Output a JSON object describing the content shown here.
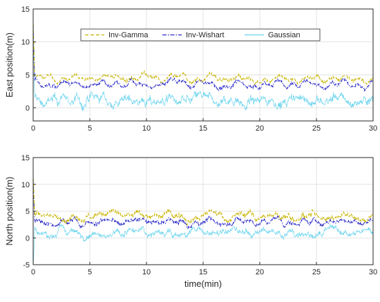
{
  "chart_data": [
    {
      "type": "line",
      "ylabel": "East position(m)",
      "xlabel": "",
      "xlim": [
        0,
        30
      ],
      "ylim": [
        -2,
        15
      ],
      "xticks": [
        0,
        5,
        10,
        15,
        20,
        25,
        30
      ],
      "yticks": [
        0,
        5,
        10,
        15
      ],
      "grid": true,
      "legend_placement": "top",
      "series": [
        {
          "name": "Inv-Gamma",
          "color": "#c8b400",
          "style": "dashed",
          "approx_level": 4.5,
          "noise": 0.35
        },
        {
          "name": "Inv-Wishart",
          "color": "#2a2ac8",
          "style": "dashdot",
          "approx_level": 3.6,
          "noise": 0.35
        },
        {
          "name": "Gaussian",
          "color": "#6ad4ee",
          "style": "solid",
          "approx_level": 1.1,
          "noise": 0.8
        }
      ]
    },
    {
      "type": "line",
      "ylabel": "North position(m)",
      "xlabel": "time(min)",
      "xlim": [
        0,
        30
      ],
      "ylim": [
        -5,
        15
      ],
      "xticks": [
        0,
        5,
        10,
        15,
        20,
        25,
        30
      ],
      "yticks": [
        -5,
        0,
        5,
        10,
        15
      ],
      "grid": true,
      "series": [
        {
          "name": "Inv-Gamma",
          "color": "#c8b400",
          "style": "dashed",
          "approx_level": 4.2,
          "noise": 0.6
        },
        {
          "name": "Inv-Wishart",
          "color": "#2a2ac8",
          "style": "dashdot",
          "approx_level": 3.0,
          "noise": 0.5
        },
        {
          "name": "Gaussian",
          "color": "#6ad4ee",
          "style": "solid",
          "approx_level": 1.0,
          "noise": 0.7
        }
      ]
    }
  ]
}
